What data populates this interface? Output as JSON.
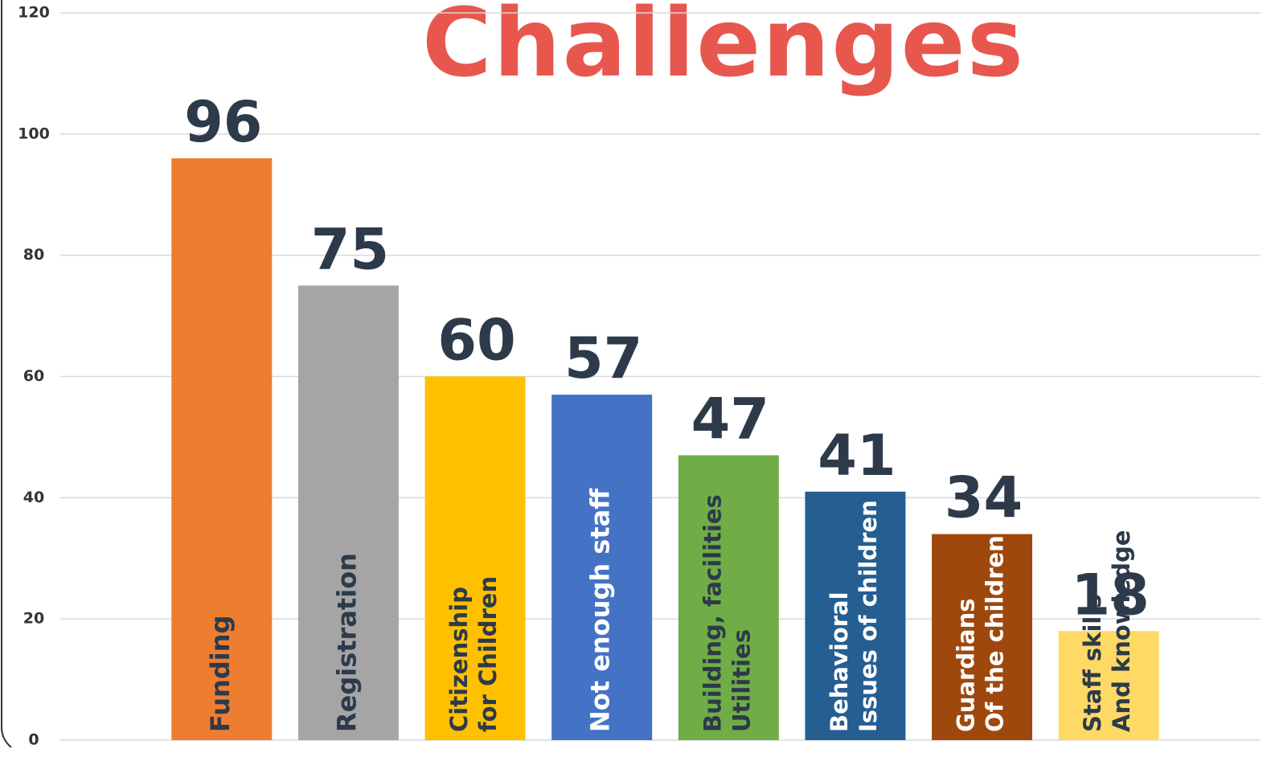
{
  "chart_data": {
    "type": "bar",
    "title": "Challenges",
    "categories": [
      "Funding",
      "Registration",
      "Citizenship\nfor Children",
      "Not enough staff",
      "Building, facilities\nUtilities",
      "Behavioral\nIssues of children",
      "Guardians\nOf the children",
      "Staff skills\nAnd knowledge"
    ],
    "values": [
      96,
      75,
      60,
      57,
      47,
      41,
      34,
      18
    ],
    "colors": [
      "#ed7d31",
      "#a5a5a5",
      "#ffc000",
      "#4472c4",
      "#70ad47",
      "#255e91",
      "#9e480e",
      "#ffd966"
    ],
    "label_colors": [
      "#2d3a4a",
      "#2d3a4a",
      "#2d3a4a",
      "#ffffff",
      "#2d3a4a",
      "#ffffff",
      "#ffffff",
      "#2d3a4a"
    ],
    "ylim": [
      0,
      120
    ],
    "yticks": [
      0,
      20,
      40,
      60,
      80,
      100,
      120
    ],
    "grid": true
  }
}
